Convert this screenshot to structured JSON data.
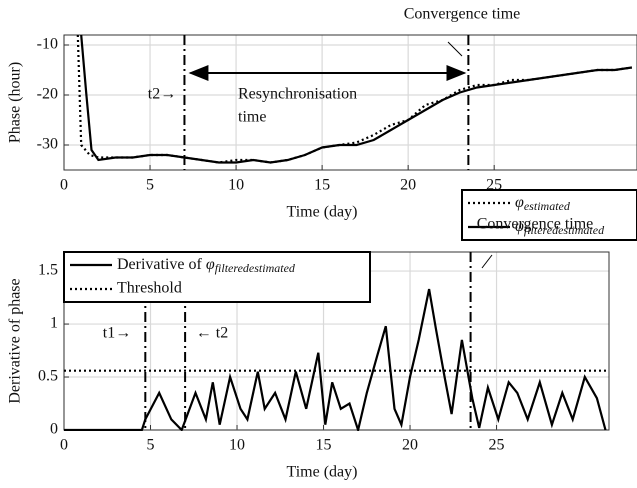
{
  "chart_data": [
    {
      "type": "line",
      "ylabel": "Phase (hour)",
      "xlabel": "Time (day)",
      "xlim": [
        0,
        33.3
      ],
      "ylim": [
        -35,
        -8
      ],
      "xticks": [
        0,
        5,
        10,
        15,
        20,
        25
      ],
      "yticks": [
        -30,
        -20,
        -10
      ],
      "grid": true,
      "legend": "lower right",
      "vlines": [
        7,
        23.5
      ],
      "annotations": [
        "Convergence time",
        "t2→",
        "Resynchronisation",
        "time"
      ],
      "series": [
        {
          "name": "φestimated",
          "color": "#000000",
          "dash": "dotted",
          "x": [
            0.8,
            1,
            1.5,
            2,
            3,
            4,
            5,
            6,
            7,
            8,
            9,
            10,
            11,
            12,
            13,
            14,
            15,
            16,
            17,
            18,
            19,
            20,
            21,
            22,
            23,
            24,
            25,
            26,
            27,
            28,
            29,
            30,
            31,
            32,
            33
          ],
          "values": [
            -8,
            -30,
            -32,
            -32.5,
            -32.5,
            -32.5,
            -32,
            -32,
            -32.5,
            -33,
            -33.5,
            -33,
            -33,
            -33.5,
            -33,
            -32,
            -30.5,
            -30,
            -29.5,
            -28,
            -26,
            -25,
            -22,
            -21,
            -19,
            -18,
            -18,
            -17,
            -17,
            -16.5,
            -16,
            -15.5,
            -15,
            -15,
            -14.5
          ]
        },
        {
          "name": "φfilteredestimated",
          "color": "#000000",
          "dash": "solid",
          "x": [
            1,
            1.3,
            1.6,
            2,
            3,
            4,
            5,
            6,
            7,
            8,
            9,
            10,
            11,
            12,
            13,
            14,
            15,
            16,
            17,
            18,
            19,
            20,
            21,
            22,
            23,
            24,
            25,
            26,
            27,
            28,
            29,
            30,
            31,
            32,
            33
          ],
          "values": [
            -8,
            -20,
            -31,
            -33,
            -32.5,
            -32.5,
            -32,
            -32,
            -32.5,
            -33,
            -33.5,
            -33.5,
            -33,
            -33.5,
            -33,
            -32,
            -30.5,
            -30,
            -30,
            -29,
            -27,
            -25,
            -23,
            -21,
            -19.5,
            -18.5,
            -18,
            -17.5,
            -17,
            -16.5,
            -16,
            -15.5,
            -15,
            -15,
            -14.5
          ]
        }
      ]
    },
    {
      "type": "line",
      "ylabel": "Derivative of phase",
      "xlabel": "Time (day)",
      "xlim": [
        0,
        31.5
      ],
      "ylim": [
        0,
        1.68
      ],
      "xticks": [
        0,
        5,
        10,
        15,
        20,
        25
      ],
      "yticks": [
        0,
        0.5,
        1,
        1.5
      ],
      "grid": true,
      "legend": "upper left",
      "vlines": [
        4.7,
        7,
        23.5
      ],
      "annotations": [
        "Convergence time",
        "t1→",
        "← t2"
      ],
      "series": [
        {
          "name": "Derivative of φfilteredestimated",
          "color": "#000000",
          "dash": "solid",
          "x": [
            0,
            4.5,
            4.7,
            5.5,
            6.2,
            6.8,
            7.6,
            8.2,
            8.6,
            9,
            9.6,
            10.2,
            10.6,
            11.2,
            11.6,
            12.2,
            12.8,
            13.4,
            14,
            14.7,
            15.1,
            15.5,
            16,
            16.5,
            17,
            17.5,
            18.1,
            18.6,
            19.1,
            19.5,
            20,
            20.5,
            21.1,
            21.5,
            22,
            22.4,
            23,
            23.6,
            24,
            24.5,
            25.1,
            25.7,
            26.2,
            26.8,
            27.5,
            28.2,
            28.8,
            29.4,
            30.1,
            30.8,
            31.3
          ],
          "values": [
            0,
            0,
            0.1,
            0.35,
            0.1,
            0,
            0.35,
            0.1,
            0.45,
            0.05,
            0.5,
            0.2,
            0.1,
            0.55,
            0.2,
            0.35,
            0.1,
            0.55,
            0.2,
            0.73,
            0.05,
            0.45,
            0.2,
            0.25,
            0,
            0.35,
            0.7,
            0.98,
            0.2,
            0.05,
            0.5,
            0.85,
            1.33,
            0.95,
            0.5,
            0.15,
            0.85,
            0.3,
            0.02,
            0.4,
            0.1,
            0.45,
            0.35,
            0.1,
            0.45,
            0.05,
            0.35,
            0.1,
            0.5,
            0.3,
            0
          ]
        },
        {
          "name": "Threshold",
          "color": "#000000",
          "dash": "dotted",
          "x": [
            0,
            31.5
          ],
          "values": [
            0.56,
            0.56
          ]
        }
      ]
    }
  ]
}
